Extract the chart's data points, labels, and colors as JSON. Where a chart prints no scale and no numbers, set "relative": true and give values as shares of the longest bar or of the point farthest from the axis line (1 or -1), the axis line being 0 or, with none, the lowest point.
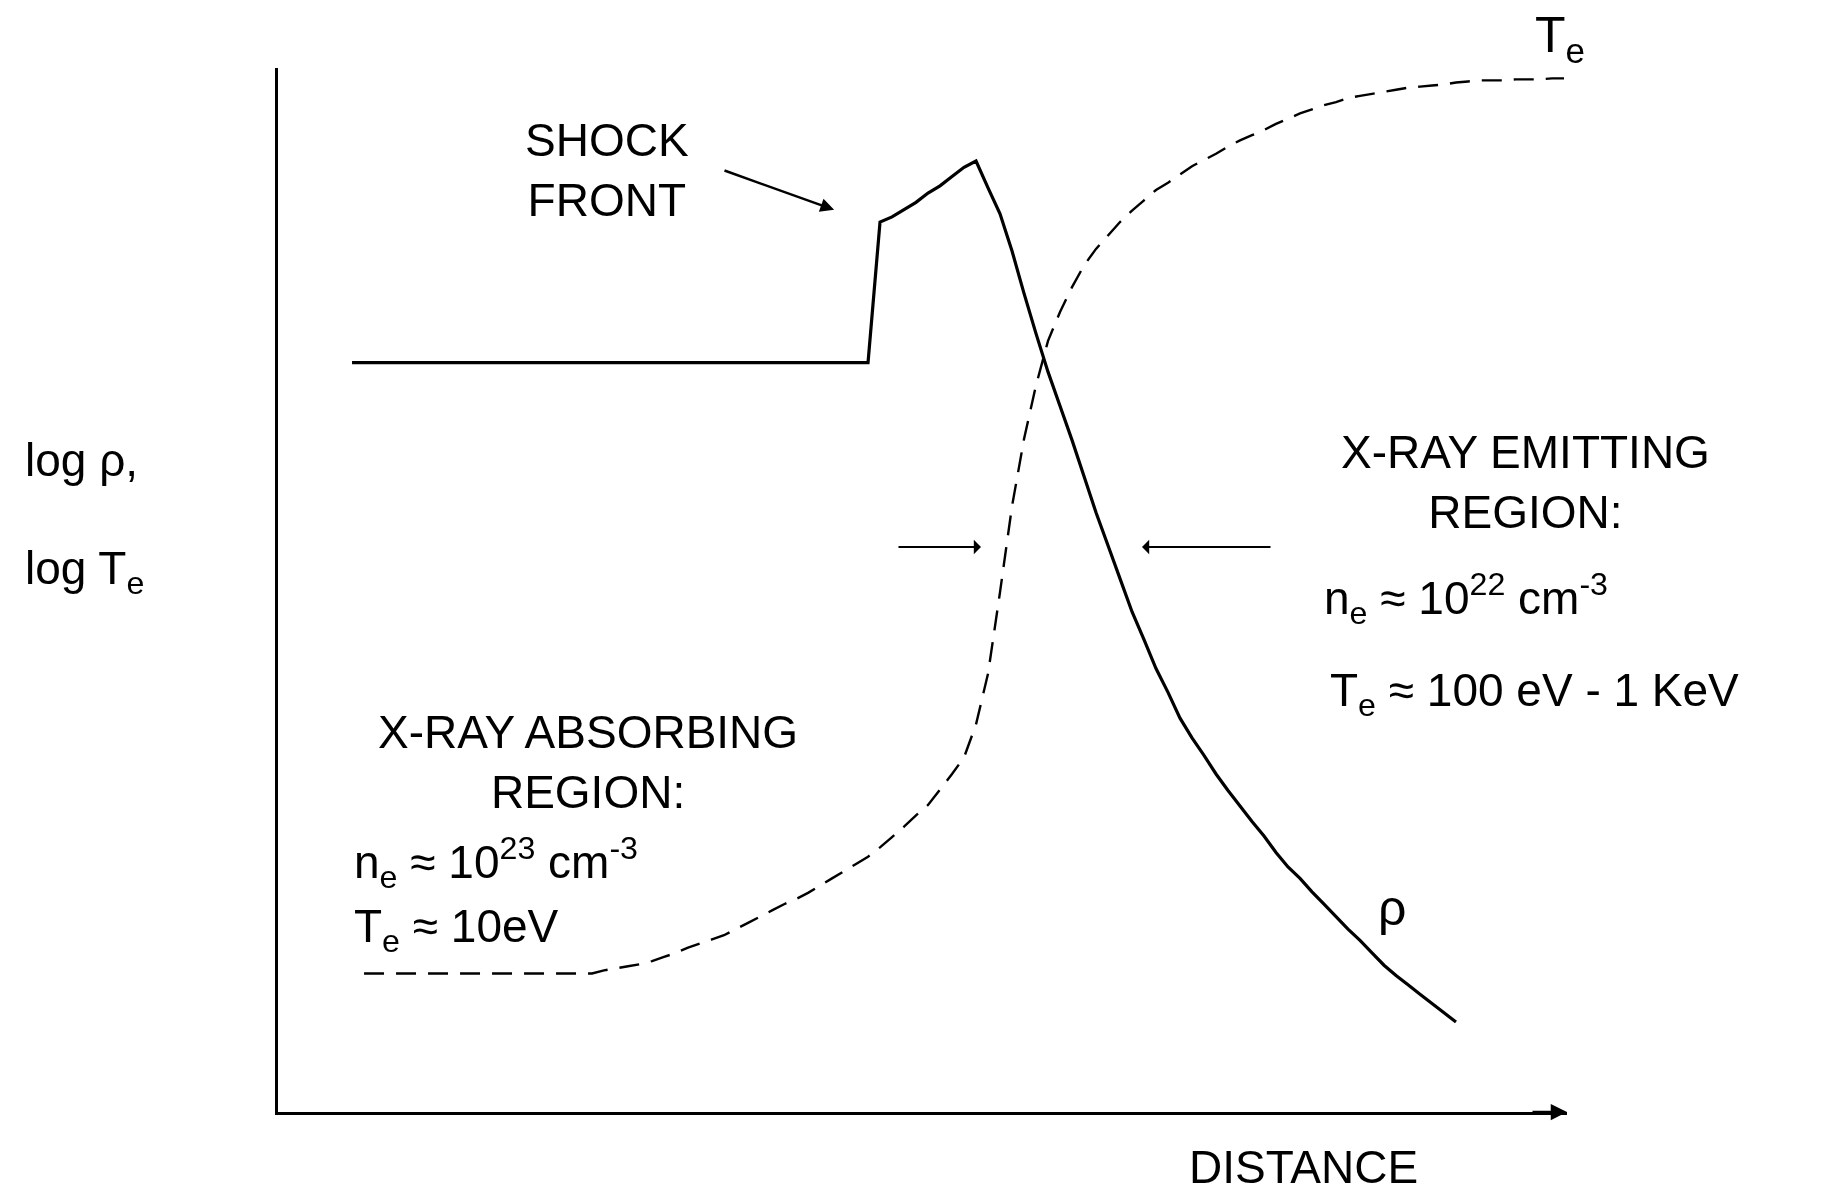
{
  "chart_data": {
    "type": "line",
    "relative": true,
    "xlabel": "DISTANCE",
    "ylabel": "log ρ,\nlog T$_{e}$",
    "categories": [
      null,
      null,
      null,
      null,
      null,
      null,
      null,
      null,
      null,
      null,
      null,
      null,
      null,
      null,
      null,
      null,
      null,
      null,
      null,
      null,
      null,
      null,
      null,
      null,
      null,
      null,
      null,
      null,
      null,
      null,
      null,
      null,
      null,
      null,
      null,
      null,
      null,
      null,
      null,
      null,
      null,
      null,
      null,
      null,
      null,
      null,
      null,
      null,
      null,
      null,
      null,
      null,
      null,
      null,
      null,
      null,
      null,
      null,
      null,
      null,
      null,
      null,
      null,
      null,
      null,
      null,
      null,
      null,
      null,
      null,
      null,
      null,
      null,
      null,
      null,
      null,
      null,
      null,
      null,
      null,
      null,
      null,
      null,
      null,
      null,
      null,
      null,
      null,
      null,
      null,
      null,
      null,
      null,
      null,
      null,
      null,
      null,
      null,
      null,
      null,
      null,
      null
    ],
    "series": [
      {
        "name": "ρ",
        "color": "#000000",
        "line_style": "solid",
        "values": [
          0.725,
          0.725,
          0.725,
          0.725,
          0.725,
          0.725,
          0.725,
          0.725,
          0.725,
          0.725,
          0.725,
          0.725,
          0.725,
          0.725,
          0.725,
          0.725,
          0.725,
          0.725,
          0.725,
          0.725,
          0.725,
          0.725,
          0.725,
          0.725,
          0.725,
          0.725,
          0.725,
          0.725,
          0.725,
          0.725,
          0.725,
          0.725,
          0.725,
          0.725,
          0.725,
          0.725,
          0.725,
          0.725,
          0.725,
          0.725,
          0.725,
          0.725,
          0.725,
          0.725,
          0.861,
          0.866,
          0.873,
          0.88,
          0.889,
          0.896,
          0.905,
          0.914,
          0.92,
          0.894,
          0.869,
          0.833,
          0.792,
          0.753,
          0.716,
          0.683,
          0.65,
          0.615,
          0.58,
          0.548,
          0.516,
          0.484,
          0.457,
          0.429,
          0.406,
          0.381,
          0.362,
          0.345,
          0.327,
          0.311,
          0.296,
          0.281,
          0.267,
          0.251,
          0.237,
          0.226,
          0.213,
          0.201,
          0.189,
          0.177,
          0.166,
          0.154,
          0.142,
          0.132,
          0.123,
          0.114,
          0.105,
          0.096,
          0.087,
          null,
          null,
          null,
          null,
          null,
          null,
          null,
          null,
          null
        ]
      },
      {
        "name": "T$_{e}$",
        "color": "#000000",
        "line_style": "dashed",
        "values": [
          null,
          0.134,
          0.134,
          0.134,
          0.134,
          0.134,
          0.134,
          0.134,
          0.134,
          0.134,
          0.134,
          0.134,
          0.134,
          0.134,
          0.134,
          0.134,
          0.134,
          0.134,
          0.134,
          0.134,
          0.134,
          0.137,
          0.139,
          0.141,
          0.143,
          0.146,
          0.15,
          0.154,
          0.159,
          0.163,
          0.167,
          0.171,
          0.177,
          0.183,
          0.189,
          0.195,
          0.201,
          0.206,
          0.212,
          0.219,
          0.226,
          0.233,
          0.24,
          0.247,
          0.256,
          0.266,
          0.276,
          0.287,
          0.297,
          0.312,
          0.327,
          0.343,
          0.375,
          0.424,
          0.503,
          0.586,
          0.651,
          0.703,
          0.746,
          0.774,
          0.798,
          0.819,
          0.835,
          0.848,
          0.861,
          0.872,
          0.882,
          0.892,
          0.899,
          0.907,
          0.915,
          0.921,
          0.927,
          0.934,
          0.94,
          0.945,
          0.95,
          0.956,
          0.961,
          0.966,
          0.97,
          0.974,
          0.977,
          0.981,
          0.983,
          0.985,
          0.987,
          0.989,
          0.991,
          0.992,
          0.993,
          0.994,
          0.996,
          0.997,
          0.998,
          0.998,
          0.998,
          0.999,
          0.999,
          0.999,
          1,
          1
        ]
      }
    ],
    "annotations": [
      "SHOCK\nFRONT",
      "X-RAY EMITTING\nREGION:",
      "n$_{e}$ ≈ 10$^{22}$ cm$^{-3}$",
      "T$_{e}$ ≈ 100 eV - 1 KeV",
      "X-RAY ABSORBING\nREGION:",
      "n$_{e}$ ≈ 10$^{23}$ cm$^{-3}$",
      "T$_{e}$ ≈ 10eV"
    ]
  }
}
